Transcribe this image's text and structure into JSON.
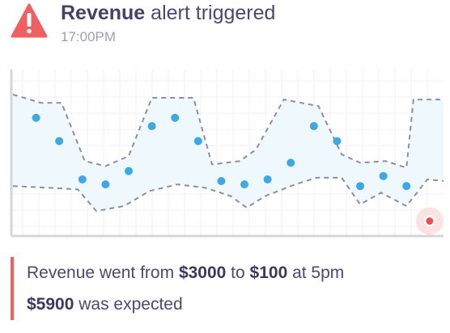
{
  "alert": {
    "icon": "warning-triangle-icon",
    "title_strong": "Revenue",
    "title_rest": " alert triggered",
    "time": "17:00PM",
    "accent_color": "#f06060"
  },
  "chart_data": {
    "type": "scatter",
    "title": "",
    "xlabel": "",
    "ylabel": "",
    "grid": true,
    "band_color": "#eef8fd",
    "point_color": "#3ea8e5",
    "anomaly_color": "#ee4c4c",
    "points": [
      {
        "x": 1,
        "y": 0.71
      },
      {
        "x": 2,
        "y": 0.57
      },
      {
        "x": 3,
        "y": 0.34
      },
      {
        "x": 4,
        "y": 0.31
      },
      {
        "x": 5,
        "y": 0.39
      },
      {
        "x": 6,
        "y": 0.66
      },
      {
        "x": 7,
        "y": 0.71
      },
      {
        "x": 8,
        "y": 0.57
      },
      {
        "x": 9,
        "y": 0.33
      },
      {
        "x": 10,
        "y": 0.31
      },
      {
        "x": 11,
        "y": 0.34
      },
      {
        "x": 12,
        "y": 0.44
      },
      {
        "x": 13,
        "y": 0.66
      },
      {
        "x": 14,
        "y": 0.57
      },
      {
        "x": 15,
        "y": 0.3
      },
      {
        "x": 16,
        "y": 0.36
      },
      {
        "x": 17,
        "y": 0.3
      },
      {
        "x": 18,
        "y": 0.09,
        "anomaly": true
      }
    ],
    "band_upper": [
      [
        0,
        0.85
      ],
      [
        1.2,
        0.8
      ],
      [
        2.1,
        0.8
      ],
      [
        3.1,
        0.45
      ],
      [
        4,
        0.42
      ],
      [
        5,
        0.48
      ],
      [
        6,
        0.83
      ],
      [
        7.8,
        0.83
      ],
      [
        8.6,
        0.43
      ],
      [
        9.8,
        0.45
      ],
      [
        10.5,
        0.52
      ],
      [
        11.7,
        0.82
      ],
      [
        13.2,
        0.78
      ],
      [
        14.2,
        0.49
      ],
      [
        15,
        0.44
      ],
      [
        16.1,
        0.45
      ],
      [
        17,
        0.41
      ],
      [
        17.3,
        0.82
      ],
      [
        18.6,
        0.82
      ]
    ],
    "band_lower": [
      [
        0,
        0.3
      ],
      [
        1.5,
        0.29
      ],
      [
        2.8,
        0.28
      ],
      [
        3.6,
        0.15
      ],
      [
        4.8,
        0.18
      ],
      [
        5.9,
        0.27
      ],
      [
        7.1,
        0.31
      ],
      [
        8.3,
        0.29
      ],
      [
        9.4,
        0.24
      ],
      [
        10.1,
        0.17
      ],
      [
        10.9,
        0.24
      ],
      [
        12.2,
        0.31
      ],
      [
        13.1,
        0.35
      ],
      [
        14.2,
        0.35
      ],
      [
        15,
        0.19
      ],
      [
        15.9,
        0.26
      ],
      [
        17,
        0.18
      ],
      [
        17.9,
        0.34
      ],
      [
        18.6,
        0.33
      ]
    ],
    "xlim": [
      0,
      18.6
    ],
    "ylim": [
      0,
      1
    ]
  },
  "message": {
    "p1": "Revenue went from ",
    "from_value": "$3000",
    "p2": " to ",
    "to_value": "$100",
    "p3": " at 5pm",
    "expected_value": "$5900",
    "p4": " was expected"
  }
}
